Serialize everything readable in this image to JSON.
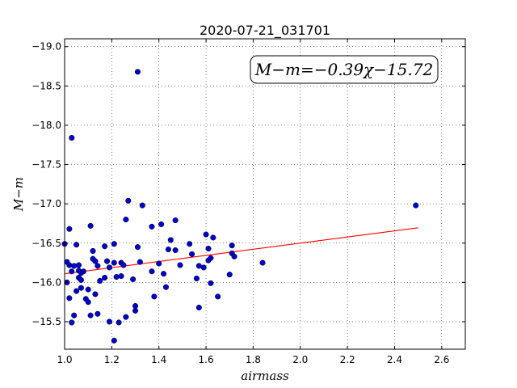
{
  "chart_data": {
    "type": "scatter",
    "title": "2020-07-21_031701",
    "xlabel": "airmass",
    "ylabel": "M−m",
    "xlim": [
      1.0,
      2.7
    ],
    "ylim": [
      -19.1,
      -15.15
    ],
    "y_inverted": true,
    "grid": true,
    "x_ticks": [
      "1.0",
      "1.2",
      "1.4",
      "1.6",
      "1.8",
      "2.0",
      "2.2",
      "2.4",
      "2.6"
    ],
    "y_ticks": [
      "−15.5",
      "−16.0",
      "−16.5",
      "−17.0",
      "−17.5",
      "−18.0",
      "−18.5",
      "−19.0"
    ],
    "annotation": "M−m=−0.39χ−15.72",
    "fit_line": {
      "slope": -0.39,
      "intercept": -15.72,
      "x_range": [
        1.0,
        2.5
      ],
      "color": "#ff0000"
    },
    "points": [
      [
        1.0,
        -16.49
      ],
      [
        1.01,
        -16.26
      ],
      [
        1.01,
        -16.0
      ],
      [
        1.02,
        -16.68
      ],
      [
        1.02,
        -16.22
      ],
      [
        1.02,
        -15.8
      ],
      [
        1.03,
        -17.84
      ],
      [
        1.03,
        -16.14
      ],
      [
        1.03,
        -15.49
      ],
      [
        1.04,
        -16.21
      ],
      [
        1.04,
        -15.58
      ],
      [
        1.05,
        -16.48
      ],
      [
        1.05,
        -15.89
      ],
      [
        1.06,
        -16.22
      ],
      [
        1.06,
        -16.15
      ],
      [
        1.06,
        -16.06
      ],
      [
        1.07,
        -16.12
      ],
      [
        1.07,
        -16.03
      ],
      [
        1.07,
        -15.93
      ],
      [
        1.08,
        -16.14
      ],
      [
        1.09,
        -15.79
      ],
      [
        1.1,
        -15.75
      ],
      [
        1.1,
        -15.91
      ],
      [
        1.11,
        -16.72
      ],
      [
        1.11,
        -15.58
      ],
      [
        1.12,
        -16.3
      ],
      [
        1.12,
        -16.4
      ],
      [
        1.13,
        -16.27
      ],
      [
        1.13,
        -15.85
      ],
      [
        1.14,
        -16.21
      ],
      [
        1.14,
        -15.6
      ],
      [
        1.15,
        -16.02
      ],
      [
        1.17,
        -16.46
      ],
      [
        1.17,
        -16.06
      ],
      [
        1.18,
        -16.27
      ],
      [
        1.19,
        -16.19
      ],
      [
        1.19,
        -15.5
      ],
      [
        1.21,
        -15.26
      ],
      [
        1.21,
        -16.25
      ],
      [
        1.21,
        -16.49
      ],
      [
        1.22,
        -16.07
      ],
      [
        1.23,
        -15.49
      ],
      [
        1.24,
        -16.08
      ],
      [
        1.24,
        -16.25
      ],
      [
        1.25,
        -16.22
      ],
      [
        1.26,
        -16.8
      ],
      [
        1.26,
        -15.56
      ],
      [
        1.27,
        -17.04
      ],
      [
        1.29,
        -16.04
      ],
      [
        1.3,
        -15.7
      ],
      [
        1.3,
        -15.64
      ],
      [
        1.31,
        -16.45
      ],
      [
        1.31,
        -18.68
      ],
      [
        1.32,
        -16.26
      ],
      [
        1.33,
        -16.98
      ],
      [
        1.37,
        -16.71
      ],
      [
        1.37,
        -16.14
      ],
      [
        1.38,
        -15.82
      ],
      [
        1.4,
        -16.24
      ],
      [
        1.41,
        -16.74
      ],
      [
        1.42,
        -16.11
      ],
      [
        1.43,
        -15.94
      ],
      [
        1.44,
        -16.42
      ],
      [
        1.45,
        -16.54
      ],
      [
        1.47,
        -16.79
      ],
      [
        1.47,
        -16.41
      ],
      [
        1.49,
        -16.22
      ],
      [
        1.53,
        -16.49
      ],
      [
        1.54,
        -16.36
      ],
      [
        1.56,
        -16.05
      ],
      [
        1.57,
        -16.21
      ],
      [
        1.57,
        -15.68
      ],
      [
        1.59,
        -16.19
      ],
      [
        1.6,
        -16.61
      ],
      [
        1.61,
        -16.43
      ],
      [
        1.61,
        -16.28
      ],
      [
        1.62,
        -16.31
      ],
      [
        1.62,
        -15.99
      ],
      [
        1.63,
        -16.57
      ],
      [
        1.65,
        -15.82
      ],
      [
        1.7,
        -16.1
      ],
      [
        1.71,
        -16.47
      ],
      [
        1.71,
        -16.37
      ],
      [
        1.72,
        -16.33
      ],
      [
        1.84,
        -16.25
      ],
      [
        2.49,
        -16.98
      ]
    ]
  }
}
